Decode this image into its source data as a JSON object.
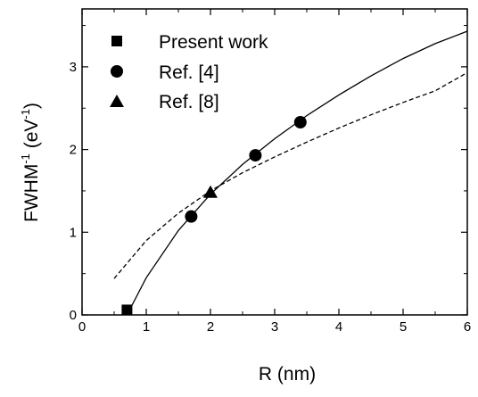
{
  "chart_data": {
    "type": "scatter",
    "xlabel": "R (nm)",
    "ylabel_main": "FWHM",
    "ylabel_sup": "-1",
    "ylabel_rest": " (eV",
    "ylabel_sup2": "-1",
    "ylabel_end": ")",
    "xlim": [
      0,
      6
    ],
    "ylim": [
      0,
      3.7
    ],
    "xticks": [
      0,
      1,
      2,
      3,
      4,
      5,
      6
    ],
    "yticks": [
      0,
      1,
      2,
      3
    ],
    "xtick_labels": [
      "0",
      "1",
      "2",
      "3",
      "4",
      "5",
      "6"
    ],
    "ytick_labels": [
      "0",
      "1",
      "2",
      "3"
    ],
    "grid": false,
    "legend_position": "top-left",
    "series": [
      {
        "name": "Present work",
        "marker": "square",
        "points": [
          [
            0.7,
            0.06
          ]
        ]
      },
      {
        "name": "Ref. [4]",
        "marker": "circle",
        "points": [
          [
            1.7,
            1.19
          ],
          [
            2.7,
            1.93
          ],
          [
            3.4,
            2.33
          ]
        ]
      },
      {
        "name": "Ref. [8]",
        "marker": "triangle",
        "points": [
          [
            2.0,
            1.48
          ]
        ]
      }
    ],
    "curves": [
      {
        "style": "solid",
        "x": [
          0.7,
          1.0,
          1.5,
          2.0,
          2.5,
          3.0,
          3.5,
          4.0,
          4.5,
          5.0,
          5.5,
          6.0
        ],
        "y": [
          0.0,
          0.45,
          1.02,
          1.46,
          1.82,
          2.13,
          2.41,
          2.66,
          2.89,
          3.1,
          3.28,
          3.43
        ]
      },
      {
        "style": "dashed",
        "x": [
          0.5,
          1.0,
          1.5,
          2.0,
          2.5,
          3.0,
          3.5,
          4.0,
          4.5,
          5.0,
          5.5,
          6.0
        ],
        "y": [
          0.44,
          0.9,
          1.23,
          1.5,
          1.72,
          1.91,
          2.09,
          2.26,
          2.42,
          2.57,
          2.71,
          2.93
        ]
      }
    ]
  }
}
